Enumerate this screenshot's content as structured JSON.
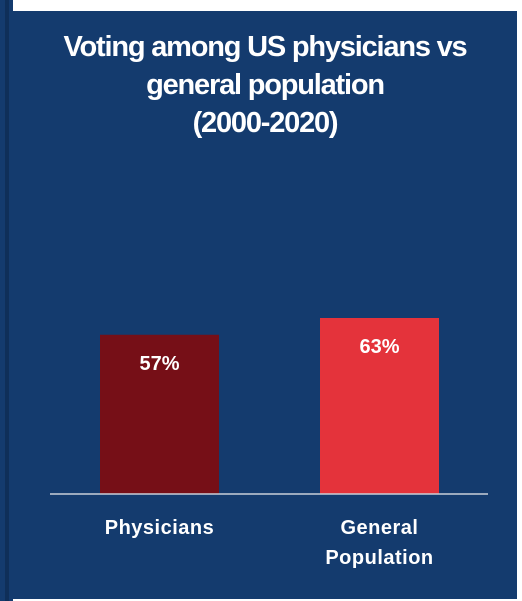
{
  "chart_data": {
    "type": "bar",
    "title_lines": [
      "Voting among US physicians vs",
      "general population",
      "(2000-2020)"
    ],
    "categories": [
      "Physicians",
      "General Population"
    ],
    "category_label_lines": [
      [
        "Physicians"
      ],
      [
        "General",
        "Population"
      ]
    ],
    "values": [
      57,
      63
    ],
    "value_labels": [
      "57%",
      "63%"
    ],
    "bar_colors": [
      "#760f17",
      "#e4333b"
    ],
    "ylim": [
      0,
      63
    ],
    "grid": false,
    "legend": "none"
  },
  "colors": {
    "background": "#143b6e",
    "baseline": "#c9cfd8",
    "text": "#ffffff"
  }
}
